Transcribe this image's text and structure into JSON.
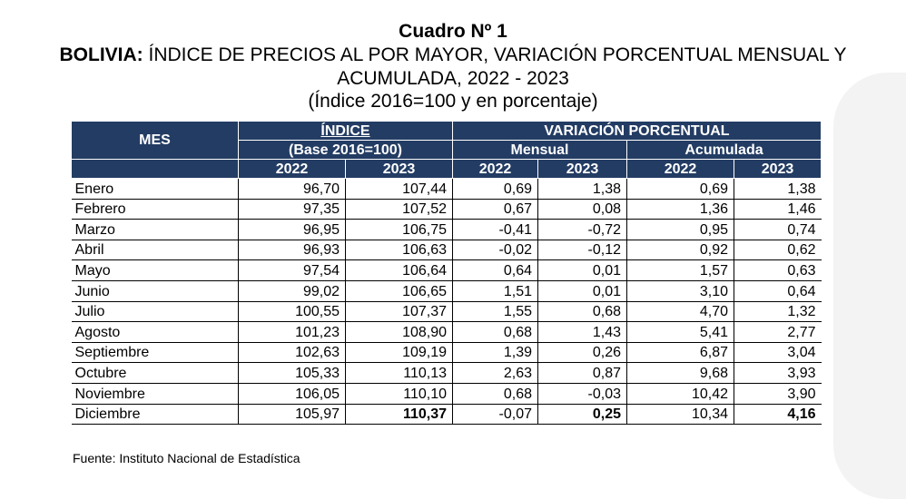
{
  "title": "Cuadro Nº 1",
  "subtitle_bold": "BOLIVIA:",
  "subtitle_rest": " ÍNDICE DE PRECIOS AL POR MAYOR, VARIACIÓN PORCENTUAL MENSUAL Y",
  "subtitle_line2": "ACUMULADA, 2022 - 2023",
  "subtitle_line3": "(Índice 2016=100 y en porcentaje)",
  "headers": {
    "mes": "MES",
    "indice": "ÍNDICE",
    "base": "(Base 2016=100)",
    "variacion": "VARIACIÓN PORCENTUAL",
    "mensual": "Mensual",
    "acumulada": "Acumulada",
    "years": [
      "2022",
      "2023",
      "2022",
      "2023",
      "2022",
      "2023"
    ]
  },
  "rows": [
    [
      "Enero",
      "96,70",
      "107,44",
      "0,69",
      "1,38",
      "0,69",
      "1,38"
    ],
    [
      "Febrero",
      "97,35",
      "107,52",
      "0,67",
      "0,08",
      "1,36",
      "1,46"
    ],
    [
      "Marzo",
      "96,95",
      "106,75",
      "-0,41",
      "-0,72",
      "0,95",
      "0,74"
    ],
    [
      "Abril",
      "96,93",
      "106,63",
      "-0,02",
      "-0,12",
      "0,92",
      "0,62"
    ],
    [
      "Mayo",
      "97,54",
      "106,64",
      "0,64",
      "0,01",
      "1,57",
      "0,63"
    ],
    [
      "Junio",
      "99,02",
      "106,65",
      "1,51",
      "0,01",
      "3,10",
      "0,64"
    ],
    [
      "Julio",
      "100,55",
      "107,37",
      "1,55",
      "0,68",
      "4,70",
      "1,32"
    ],
    [
      "Agosto",
      "101,23",
      "108,90",
      "0,68",
      "1,43",
      "5,41",
      "2,77"
    ],
    [
      "Septiembre",
      "102,63",
      "109,19",
      "1,39",
      "0,26",
      "6,87",
      "3,04"
    ],
    [
      "Octubre",
      "105,33",
      "110,13",
      "2,63",
      "0,87",
      "9,68",
      "3,93"
    ],
    [
      "Noviembre",
      "106,05",
      "110,10",
      "0,68",
      "-0,03",
      "10,42",
      "3,90"
    ],
    [
      "Diciembre",
      "105,97",
      "110,37",
      "-0,07",
      "0,25",
      "10,34",
      "4,16"
    ]
  ],
  "source": "Fuente: Instituto Nacional de Estadística",
  "colors": {
    "header_bg": "#233c63",
    "header_text": "#ffffff"
  }
}
